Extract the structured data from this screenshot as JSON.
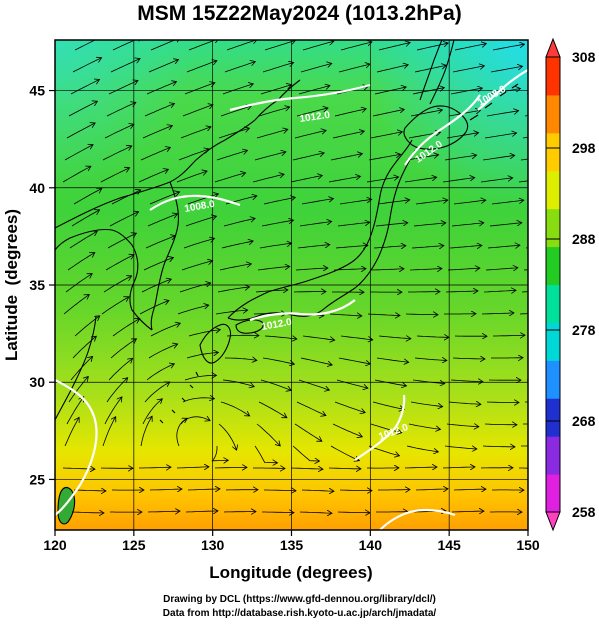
{
  "title": "MSM 15Z22May2024 (1013.2hPa)",
  "axes": {
    "xlabel": "Longitude (degrees)",
    "ylabel": "Latitude  (degrees)",
    "xticks": [
      "120",
      "125",
      "130",
      "135",
      "140",
      "145",
      "150"
    ],
    "yticks": [
      "25",
      "30",
      "35",
      "40",
      "45"
    ],
    "xlim": [
      120,
      150
    ],
    "ylim": [
      22.4,
      47.6
    ]
  },
  "colorbar": {
    "ticks": [
      "258",
      "268",
      "278",
      "288",
      "298",
      "308"
    ],
    "range": [
      258,
      308
    ],
    "colors": [
      "#e020e0",
      "#8a2be2",
      "#2030d0",
      "#1e90ff",
      "#00d8d8",
      "#00e09a",
      "#22cc22",
      "#88dd11",
      "#ddee00",
      "#ffcc00",
      "#ff8800",
      "#ff3300"
    ]
  },
  "isobar_labels": [
    "1008.0",
    "1012.0",
    "1012.0",
    "1008.0",
    "1012.0",
    "1012.0"
  ],
  "footer": {
    "line1": "Drawing by DCL (https://www.gfd-dennou.org/library/dcl/)",
    "line2": "Data from http://database.rish.kyoto-u.ac.jp/arch/jmadata/"
  },
  "colors": {
    "land_outline": "#000000",
    "isobar": "#ffffff",
    "streamline": "#000000"
  }
}
